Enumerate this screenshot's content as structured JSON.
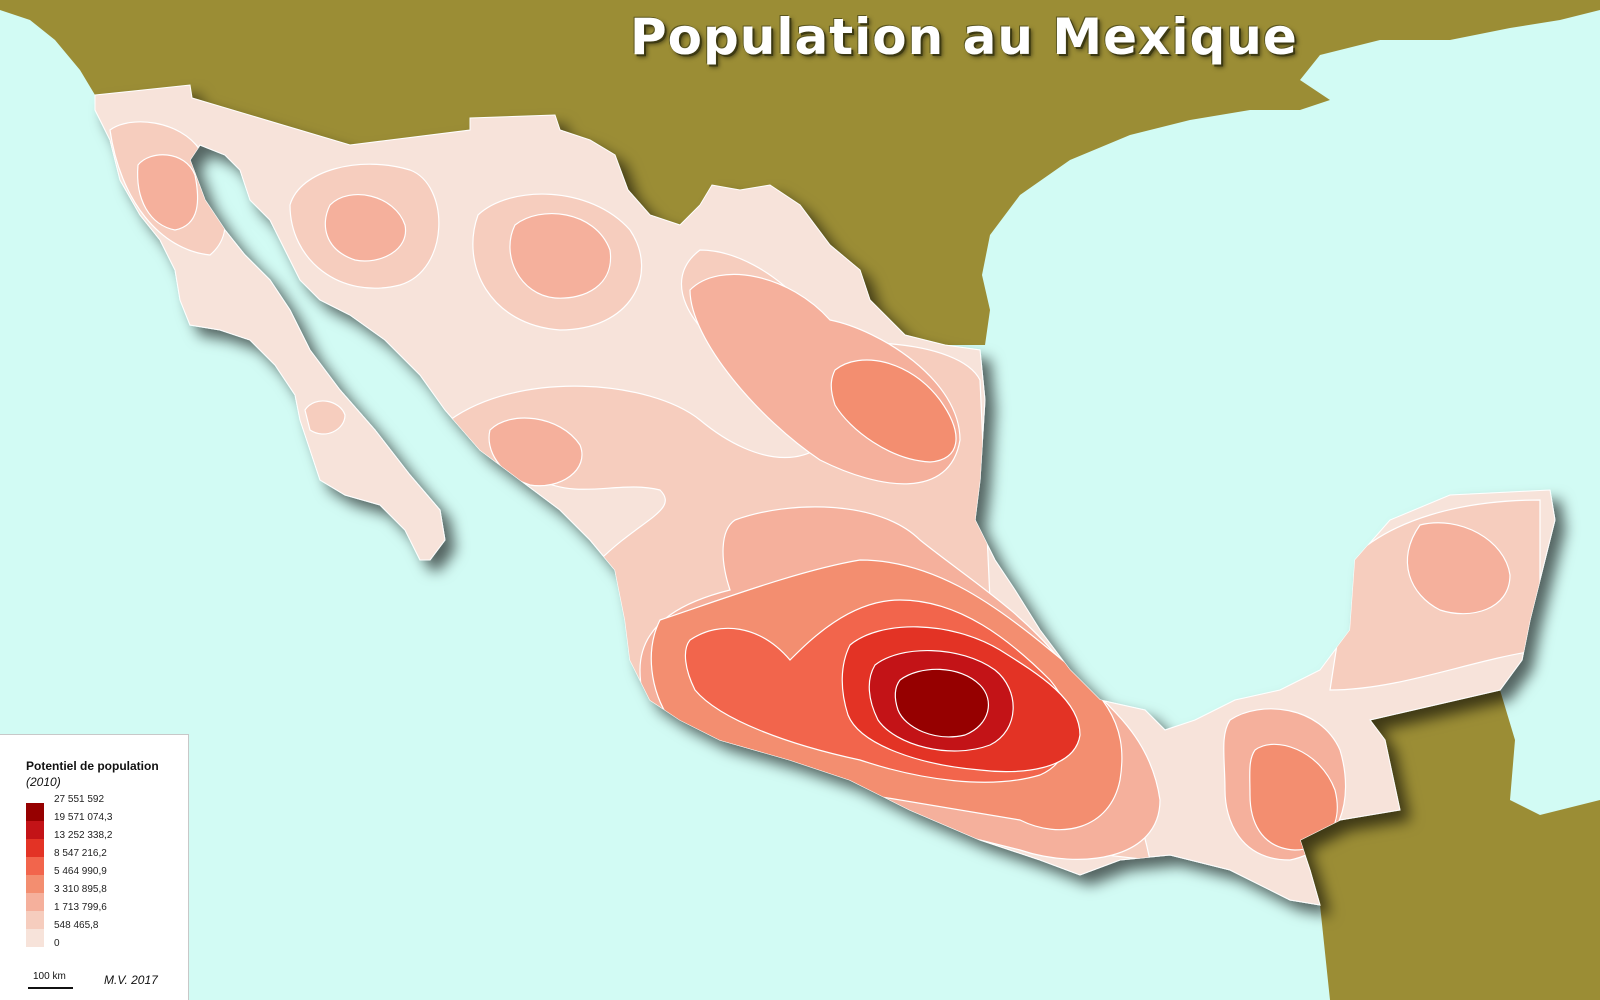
{
  "map": {
    "title": "Population au Mexique"
  },
  "colors": {
    "sea": "#d2fbf4",
    "neighbor_land": "#9b8d35",
    "contour_line": "#ffffff"
  },
  "legend": {
    "title": "Potentiel de population",
    "subtitle": "(2010)",
    "class_breaks": [
      "27 551 592",
      "19 571 074,3",
      "13 252 338,2",
      "8 547 216,2",
      "5 464 990,9",
      "3 310 895,8",
      "1 713 799,6",
      "548 465,8",
      "0"
    ],
    "class_colors": [
      "#960000",
      "#c31317",
      "#e33325",
      "#f2654c",
      "#f38e70",
      "#f5b09c",
      "#f6cdbe",
      "#f7e3da"
    ]
  },
  "scale": {
    "label": "100 km"
  },
  "credit": "M.V. 2017"
}
